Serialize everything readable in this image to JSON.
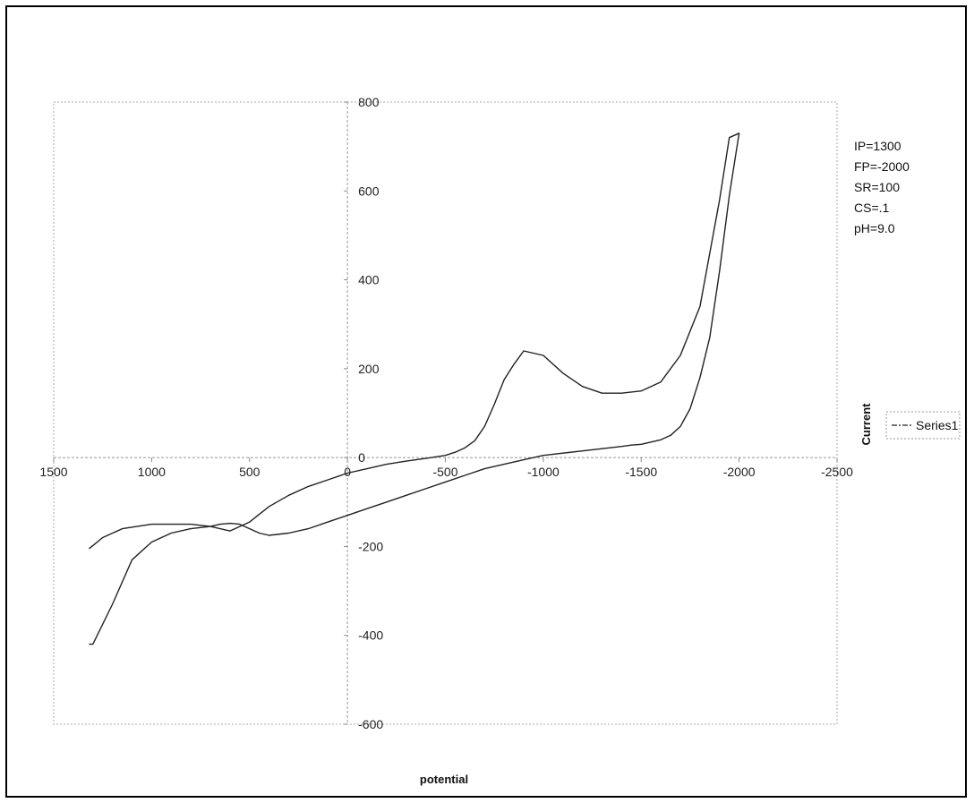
{
  "chart_data": {
    "type": "line",
    "title": "",
    "xlabel": "potential",
    "ylabel": "Current",
    "xlim": [
      1500,
      -2500
    ],
    "ylim": [
      -600,
      800
    ],
    "x_reversed": true,
    "x_ticks": [
      1500,
      1000,
      500,
      0,
      -500,
      -1000,
      -1500,
      -2000,
      -2500
    ],
    "x_tick_labels": [
      "1500",
      "1000",
      "500",
      "0",
      "-500",
      "-1000",
      "-1500",
      "-2000",
      "-2500"
    ],
    "y_ticks": [
      800,
      600,
      400,
      200,
      0,
      -200,
      -400,
      -600
    ],
    "y_tick_labels": [
      "800",
      "600",
      "400",
      "200",
      "0",
      "-200",
      "-400",
      "-600"
    ],
    "grid": true,
    "legend": {
      "position": "right",
      "entries": [
        "Series1"
      ]
    },
    "annotations": [
      "IP=1300",
      "FP=-2000",
      "SR=100",
      "CS=.1",
      "pH=9.0"
    ],
    "series": [
      {
        "name": "Series1",
        "color": "#222222",
        "x": [
          1320,
          1300,
          1250,
          1150,
          1000,
          900,
          800,
          700,
          600,
          500,
          400,
          300,
          200,
          100,
          0,
          -100,
          -200,
          -300,
          -400,
          -500,
          -550,
          -600,
          -650,
          -700,
          -750,
          -800,
          -850,
          -900,
          -1000,
          -1100,
          -1200,
          -1300,
          -1400,
          -1500,
          -1600,
          -1700,
          -1800,
          -1900,
          -1950,
          -2000,
          -2000,
          -1950,
          -1900,
          -1850,
          -1800,
          -1750,
          -1700,
          -1650,
          -1600,
          -1550,
          -1500,
          -1450,
          -1400,
          -1300,
          -1200,
          -1100,
          -1000,
          -900,
          -800,
          -700,
          -600,
          -500,
          -400,
          -300,
          -200,
          -100,
          0,
          100,
          200,
          300,
          400,
          450,
          500,
          550,
          600,
          650,
          700,
          800,
          900,
          1000,
          1100,
          1200,
          1300,
          1320
        ],
        "y": [
          -205,
          -198,
          -180,
          -160,
          -150,
          -150,
          -150,
          -155,
          -165,
          -145,
          -110,
          -85,
          -65,
          -50,
          -35,
          -25,
          -15,
          -8,
          -2,
          5,
          12,
          22,
          38,
          70,
          120,
          175,
          210,
          240,
          230,
          190,
          160,
          145,
          145,
          150,
          170,
          230,
          340,
          580,
          720,
          730,
          730,
          590,
          420,
          270,
          180,
          110,
          70,
          50,
          40,
          35,
          30,
          28,
          25,
          20,
          15,
          10,
          5,
          -5,
          -15,
          -25,
          -40,
          -55,
          -70,
          -85,
          -100,
          -115,
          -130,
          -145,
          -160,
          -170,
          -175,
          -170,
          -160,
          -150,
          -148,
          -150,
          -155,
          -160,
          -170,
          -190,
          -230,
          -330,
          -420,
          -420
        ]
      }
    ]
  }
}
